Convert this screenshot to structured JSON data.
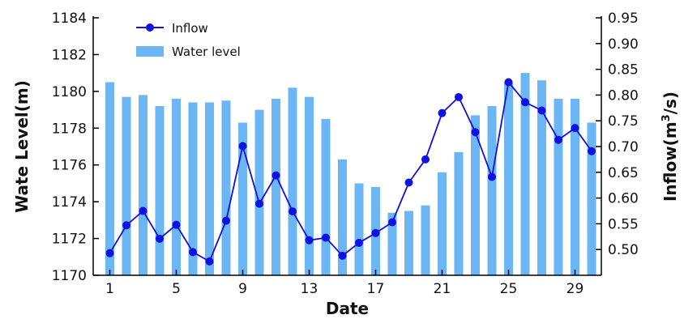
{
  "chart_data": {
    "type": "bar+line",
    "xlabel": "Date",
    "categories": [
      "1",
      "2",
      "3",
      "4",
      "5",
      "6",
      "7",
      "8",
      "9",
      "10",
      "11",
      "12",
      "13",
      "14",
      "15",
      "16",
      "17",
      "18",
      "19",
      "20",
      "21",
      "22",
      "23",
      "24",
      "25",
      "26",
      "27",
      "28",
      "29",
      "30"
    ],
    "x_tick_labels": [
      "1",
      "5",
      "9",
      "13",
      "17",
      "21",
      "25",
      "29"
    ],
    "x_tick_dates": [
      1,
      5,
      9,
      13,
      17,
      21,
      25,
      29
    ],
    "series": [
      {
        "name": "Water level",
        "kind": "bar",
        "axis": "left",
        "color": "#6DB6F5",
        "values": [
          1180.5,
          1179.7,
          1179.8,
          1179.2,
          1179.6,
          1179.4,
          1179.4,
          1179.5,
          1178.3,
          1179.0,
          1179.6,
          1180.2,
          1179.7,
          1178.5,
          1176.3,
          1175.0,
          1174.8,
          1173.4,
          1173.5,
          1173.8,
          1175.6,
          1176.7,
          1178.7,
          1179.2,
          1180.5,
          1181.0,
          1180.6,
          1179.6,
          1179.6,
          1178.3
        ]
      },
      {
        "name": "Inflow",
        "kind": "line",
        "axis": "right",
        "color": "#1010E0",
        "values": [
          0.493,
          0.547,
          0.575,
          0.521,
          0.548,
          0.495,
          0.477,
          0.556,
          0.701,
          0.589,
          0.644,
          0.574,
          0.518,
          0.523,
          0.488,
          0.513,
          0.532,
          0.553,
          0.63,
          0.675,
          0.765,
          0.796,
          0.728,
          0.641,
          0.825,
          0.786,
          0.77,
          0.713,
          0.736,
          0.691
        ]
      }
    ],
    "y_left": {
      "label": "Wate Level(m)",
      "ylim": [
        1170,
        1184
      ],
      "ticks": [
        1170,
        1172,
        1174,
        1176,
        1178,
        1180,
        1182,
        1184
      ],
      "tick_labels": [
        "1170",
        "1172",
        "1174",
        "1176",
        "1178",
        "1180",
        "1182",
        "1184"
      ]
    },
    "y_right": {
      "label_prefix": "Inflow(m",
      "label_sup": "3",
      "label_suffix": "/s)",
      "ylim": [
        0.45,
        0.95
      ],
      "ticks": [
        0.5,
        0.55,
        0.6,
        0.65,
        0.7,
        0.75,
        0.8,
        0.85,
        0.9,
        0.95
      ],
      "tick_labels": [
        "0.50",
        "0.55",
        "0.60",
        "0.65",
        "0.70",
        "0.75",
        "0.80",
        "0.85",
        "0.90",
        "0.95"
      ]
    },
    "legend": {
      "placement": "top-left",
      "entries": [
        "Inflow",
        "Water level"
      ]
    },
    "grid": false
  }
}
